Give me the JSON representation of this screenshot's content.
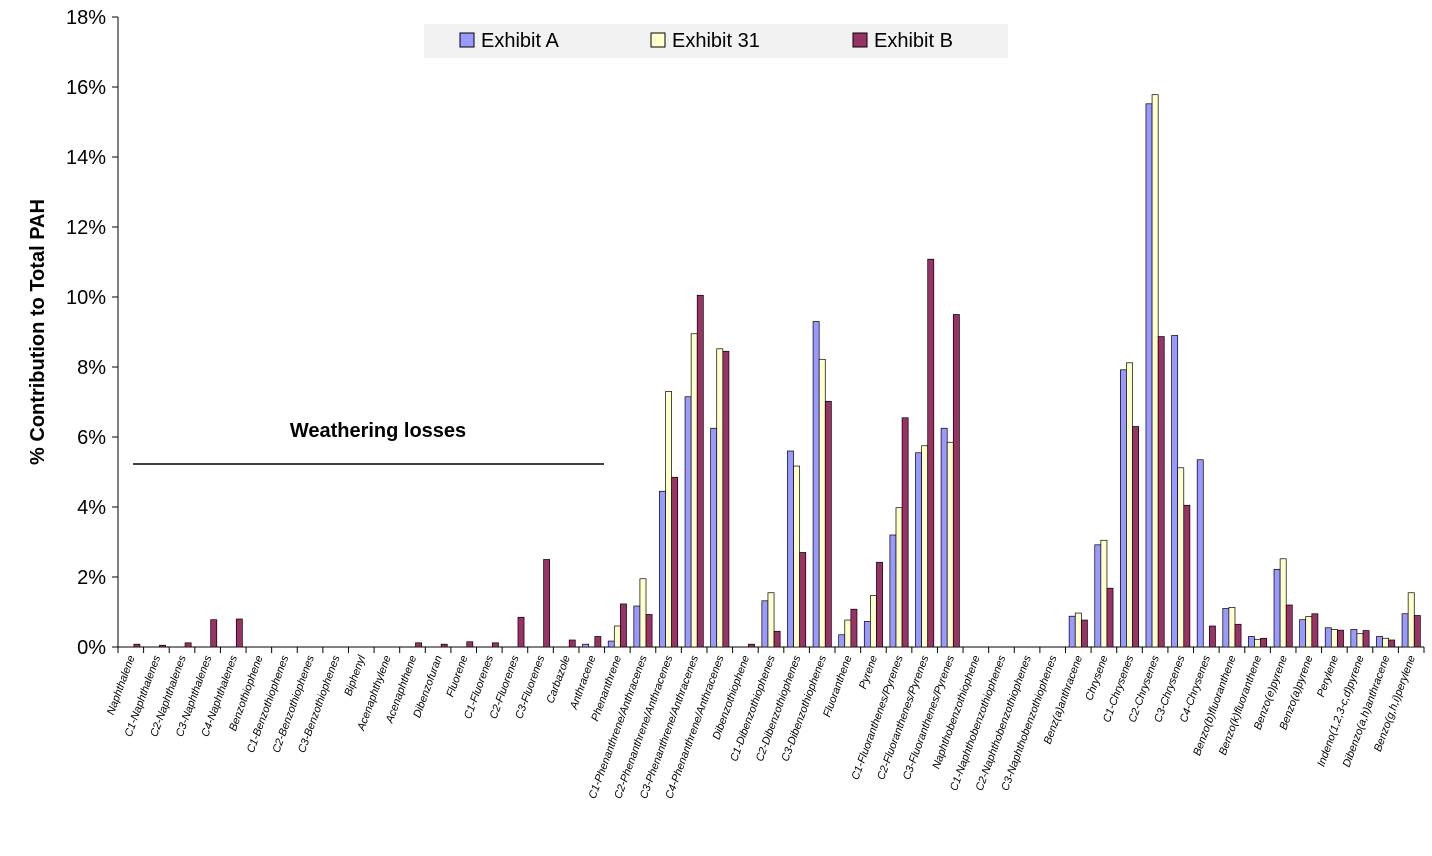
{
  "chart_data": {
    "type": "bar",
    "ylabel": "% Contribution to Total PAH",
    "ylim": [
      0,
      18
    ],
    "yticks": [
      "0%",
      "2%",
      "4%",
      "6%",
      "8%",
      "10%",
      "12%",
      "14%",
      "16%",
      "18%"
    ],
    "legend_position": "top-center",
    "annotation": "Weathering losses",
    "categories": [
      "Naphthalene",
      "C1-Naphthalenes",
      "C2-Naphthalenes",
      "C3-Naphthalenes",
      "C4-Naphthalenes",
      "Benzothiophene",
      "C1-Benzothiophenes",
      "C2-Benzothiophenes",
      "C3-Benzothiophenes",
      "Biphenyl",
      "Acenaphthylene",
      "Acenaphthene",
      "Dibenzofuran",
      "Fluorene",
      "C1-Fluorenes",
      "C2-Fluorenes",
      "C3-Fluorenes",
      "Carbazole",
      "Anthracene",
      "Phenanthrene",
      "C1-Phenanthrene/Anthracenes",
      "C2-Phenanthrene/Anthracenes",
      "C3-Phenanthrene/Anthracenes",
      "C4-Phenanthrene/Anthracenes",
      "Dibenzothiophene",
      "C1-Dibenzothiophenes",
      "C2-Dibenzothiophenes",
      "C3-Dibenzothiophenes",
      "Fluoranthene",
      "Pyrene",
      "C1-Fluoranthenes/Pyrenes",
      "C2-Fluoranthenes/Pyrenes",
      "C3-Fluoranthenes/Pyrenes",
      "Naphthobenzothiophene",
      "C1-Naphthobenzothiophenes",
      "C2-Naphthobenzothiophenes",
      "C3-Naphthobenzothiophenes",
      "Benz(a)anthracene",
      "Chrysene",
      "C1-Chrysenes",
      "C2-Chrysenes",
      "C3-Chrysenes",
      "C4-Chrysenes",
      "Benzo(b)fluoranthene",
      "Benzo(k)fluoranthene",
      "Benzo(e)pyrene",
      "Benzo(a)pyrene",
      "Perylene",
      "Indeno(1,2,3-c,d)pyrene",
      "Dibenzo(a,h)anthracene",
      "Benzo(g,h,i)perylene"
    ],
    "series": [
      {
        "name": "Exhibit A",
        "color": "#9999ff",
        "values": [
          0,
          0,
          0,
          0,
          0,
          0,
          0,
          0,
          0,
          0,
          0,
          0,
          0,
          0,
          0,
          0,
          0,
          0,
          0.08,
          0.17,
          1.17,
          4.45,
          7.15,
          6.25,
          0,
          1.32,
          5.6,
          9.3,
          0.35,
          0.73,
          3.2,
          5.55,
          6.25,
          0,
          0,
          0,
          0,
          0.88,
          2.92,
          7.92,
          15.52,
          8.9,
          5.35,
          1.1,
          0.3,
          2.22,
          0.78,
          0.55,
          0.5,
          0.3,
          0.95
        ]
      },
      {
        "name": "Exhibit 31",
        "color": "#ffffcc",
        "values": [
          0,
          0,
          0,
          0,
          0,
          0,
          0,
          0,
          0,
          0,
          0,
          0,
          0,
          0,
          0,
          0,
          0,
          0,
          0,
          0.6,
          1.95,
          7.3,
          8.95,
          8.52,
          0,
          1.55,
          5.17,
          8.22,
          0.77,
          1.47,
          3.98,
          5.75,
          5.85,
          0,
          0,
          0,
          0,
          0.97,
          3.05,
          8.12,
          15.78,
          5.12,
          0,
          1.13,
          0.22,
          2.52,
          0.87,
          0.5,
          0.38,
          0.25,
          1.55
        ]
      },
      {
        "name": "Exhibit B",
        "color": "#993366",
        "values": [
          0.08,
          0.05,
          0.12,
          0.78,
          0.8,
          0,
          0,
          0,
          0,
          0,
          0,
          0.12,
          0.08,
          0.15,
          0.12,
          0.85,
          2.5,
          0.2,
          0.3,
          1.23,
          0.93,
          4.85,
          10.05,
          8.45,
          0.08,
          0.45,
          2.7,
          7.02,
          1.08,
          2.42,
          6.55,
          11.08,
          9.5,
          0,
          0,
          0,
          0,
          0.77,
          1.68,
          6.3,
          8.87,
          4.05,
          0.6,
          0.65,
          0.25,
          1.2,
          0.95,
          0.48,
          0.47,
          0.2,
          0.9
        ]
      }
    ]
  }
}
